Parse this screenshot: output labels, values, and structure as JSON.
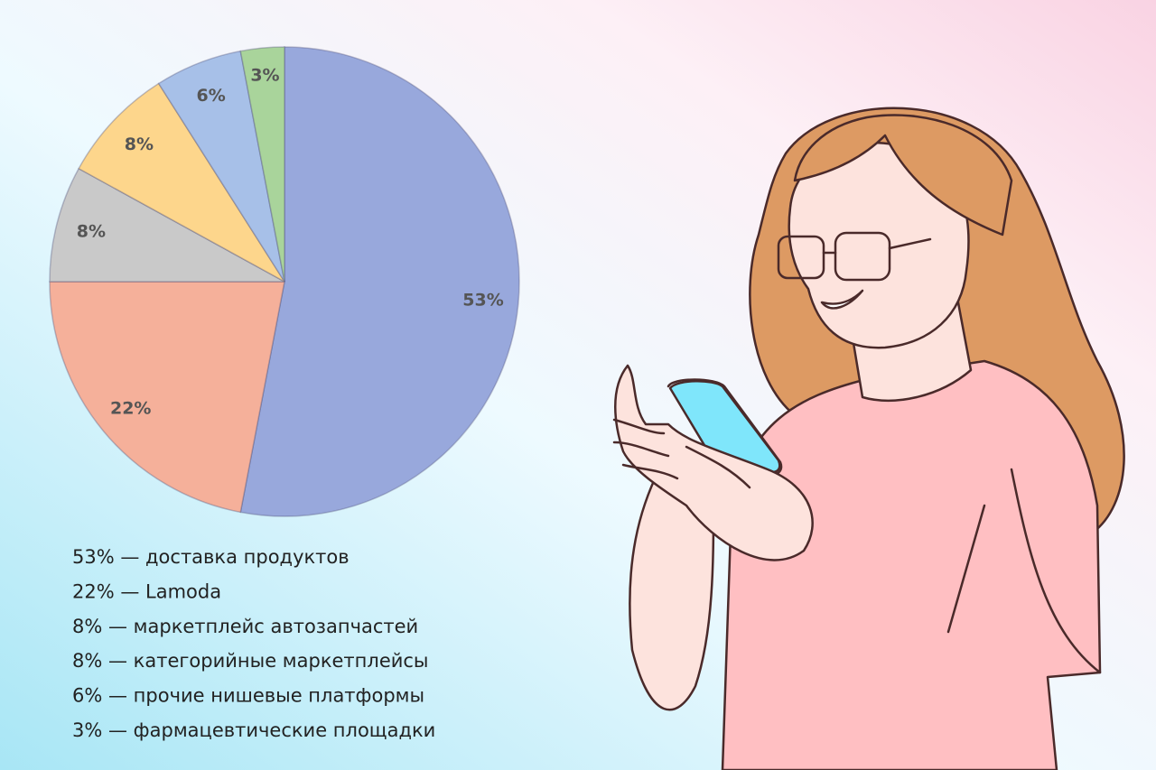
{
  "chart_data": {
    "type": "pie",
    "categories": [
      "53% — доставка продуктов",
      "22% — Lamoda",
      "8% — маркетплейс автозапчастей",
      "8% — категорийные маркетплейсы",
      "6% — прочие нишевые платформы",
      "3% — фармацевтические площадки"
    ],
    "values": [
      53,
      22,
      8,
      8,
      6,
      3
    ],
    "value_labels": [
      "53%",
      "22%",
      "8%",
      "8%",
      "6%",
      "3%"
    ],
    "colors": [
      "#98a8dc",
      "#f5b09a",
      "#c9c9c9",
      "#fdd68c",
      "#a7c0e8",
      "#a9d49b"
    ],
    "start_angle": 0,
    "direction": "clockwise"
  }
}
